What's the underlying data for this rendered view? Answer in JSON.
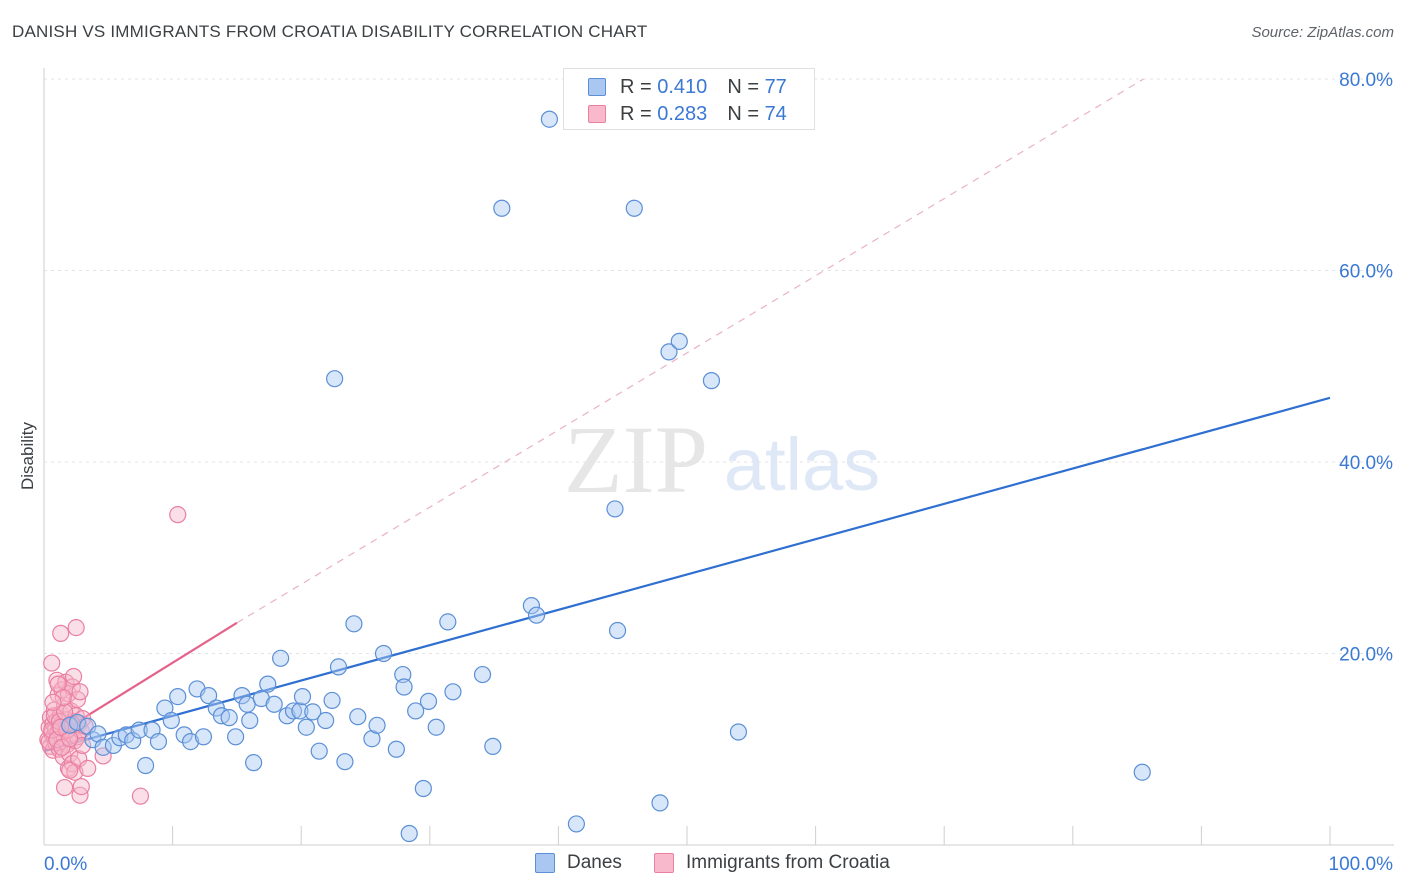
{
  "header": {
    "title": "DANISH VS IMMIGRANTS FROM CROATIA DISABILITY CORRELATION CHART",
    "source": "Source: ZipAtlas.com"
  },
  "watermark": {
    "zip": "ZIP",
    "atlas": "atlas"
  },
  "legend": {
    "items": [
      {
        "r_label": "R =",
        "r_value": "0.410",
        "n_label": "N =",
        "n_value": "77"
      },
      {
        "r_label": "R =",
        "r_value": "0.283",
        "n_label": "N =",
        "n_value": "74"
      }
    ]
  },
  "bottom_legend": {
    "danes": "Danes",
    "croatia": "Immigrants from Croatia"
  },
  "colors": {
    "danes_fill": "#a9c7f1",
    "danes_stroke": "#5b8fd6",
    "danes_line": "#2f6fd1",
    "croatia_fill": "#f7b9cb",
    "croatia_stroke": "#ea7fa0",
    "croatia_line": "#e5638b",
    "axis_text": "#3b78d4",
    "grid": "#e3e3e3"
  },
  "chart_data": {
    "type": "scatter",
    "title": "DANISH VS IMMIGRANTS FROM CROATIA DISABILITY CORRELATION CHART",
    "xlabel": "",
    "ylabel": "Disability",
    "xlim": [
      0,
      100
    ],
    "ylim": [
      0,
      80
    ],
    "x_tick_labels": [
      "0.0%",
      "100.0%"
    ],
    "y_ticks": [
      20,
      40,
      60,
      80
    ],
    "y_tick_labels": [
      "20.0%",
      "40.0%",
      "60.0%",
      "80.0%"
    ],
    "series": [
      {
        "name": "Danes",
        "R": 0.41,
        "N": 77,
        "trend": {
          "x": [
            0,
            100
          ],
          "y": [
            9.8,
            46.7
          ],
          "style": "solid"
        },
        "points": [
          [
            2.0,
            12.5
          ],
          [
            2.6,
            12.8
          ],
          [
            3.4,
            12.4
          ],
          [
            3.8,
            11.0
          ],
          [
            4.2,
            11.6
          ],
          [
            4.6,
            10.2
          ],
          [
            5.4,
            10.4
          ],
          [
            5.9,
            11.2
          ],
          [
            6.4,
            11.5
          ],
          [
            6.9,
            10.9
          ],
          [
            7.4,
            12.0
          ],
          [
            7.9,
            8.3
          ],
          [
            8.4,
            12.0
          ],
          [
            8.9,
            10.8
          ],
          [
            9.4,
            14.3
          ],
          [
            9.9,
            13.0
          ],
          [
            10.4,
            15.5
          ],
          [
            10.9,
            11.5
          ],
          [
            11.4,
            10.8
          ],
          [
            11.9,
            16.3
          ],
          [
            12.4,
            11.3
          ],
          [
            12.8,
            15.6
          ],
          [
            13.4,
            14.3
          ],
          [
            13.8,
            13.5
          ],
          [
            14.4,
            13.3
          ],
          [
            14.9,
            11.3
          ],
          [
            15.4,
            15.6
          ],
          [
            15.8,
            14.7
          ],
          [
            16.3,
            8.6
          ],
          [
            16.9,
            15.3
          ],
          [
            17.4,
            16.8
          ],
          [
            17.9,
            14.7
          ],
          [
            18.4,
            19.5
          ],
          [
            18.9,
            13.5
          ],
          [
            19.4,
            14.0
          ],
          [
            19.9,
            14.0
          ],
          [
            20.4,
            12.3
          ],
          [
            20.9,
            13.9
          ],
          [
            21.4,
            9.8
          ],
          [
            21.9,
            13.0
          ],
          [
            22.4,
            15.1
          ],
          [
            22.9,
            18.6
          ],
          [
            22.6,
            48.7
          ],
          [
            23.4,
            8.7
          ],
          [
            24.1,
            23.1
          ],
          [
            24.4,
            13.4
          ],
          [
            25.5,
            11.1
          ],
          [
            25.9,
            12.5
          ],
          [
            26.4,
            20.0
          ],
          [
            27.4,
            10.0
          ],
          [
            27.9,
            17.8
          ],
          [
            28.4,
            1.2
          ],
          [
            28.9,
            14.0
          ],
          [
            29.5,
            5.9
          ],
          [
            29.9,
            15.0
          ],
          [
            30.5,
            12.3
          ],
          [
            31.4,
            23.3
          ],
          [
            31.8,
            16.0
          ],
          [
            34.1,
            17.8
          ],
          [
            34.9,
            10.3
          ],
          [
            35.6,
            66.5
          ],
          [
            37.9,
            25.0
          ],
          [
            38.3,
            24.0
          ],
          [
            39.3,
            75.8
          ],
          [
            41.4,
            2.2
          ],
          [
            44.4,
            35.1
          ],
          [
            44.6,
            22.4
          ],
          [
            45.9,
            66.5
          ],
          [
            47.9,
            4.4
          ],
          [
            48.6,
            51.5
          ],
          [
            49.4,
            52.6
          ],
          [
            51.9,
            48.5
          ],
          [
            54.0,
            11.8
          ],
          [
            85.4,
            7.6
          ],
          [
            28.0,
            16.5
          ],
          [
            16.0,
            13.0
          ],
          [
            20.1,
            15.5
          ]
        ]
      },
      {
        "name": "Immigrants from Croatia",
        "R": 0.283,
        "N": 74,
        "trend": {
          "x": [
            0,
            15
          ],
          "y": [
            10.7,
            23.2
          ],
          "style": "solid"
        },
        "trend_extension": {
          "x": [
            15,
            85.5
          ],
          "y": [
            23.2,
            80
          ],
          "style": "dashed"
        },
        "points": [
          [
            0.3,
            11.0
          ],
          [
            0.4,
            12.3
          ],
          [
            0.5,
            10.3
          ],
          [
            0.5,
            13.3
          ],
          [
            0.6,
            11.7
          ],
          [
            0.6,
            19.0
          ],
          [
            0.7,
            12.7
          ],
          [
            0.7,
            9.9
          ],
          [
            0.8,
            11.4
          ],
          [
            0.8,
            14.1
          ],
          [
            0.9,
            12.1
          ],
          [
            0.9,
            10.7
          ],
          [
            1.0,
            13.0
          ],
          [
            1.0,
            17.2
          ],
          [
            1.1,
            11.8
          ],
          [
            1.1,
            15.7
          ],
          [
            1.2,
            12.4
          ],
          [
            1.2,
            10.0
          ],
          [
            1.3,
            13.7
          ],
          [
            1.3,
            22.1
          ],
          [
            1.4,
            11.2
          ],
          [
            1.4,
            16.2
          ],
          [
            1.5,
            12.8
          ],
          [
            1.5,
            9.2
          ],
          [
            1.6,
            6.0
          ],
          [
            1.6,
            14.6
          ],
          [
            1.7,
            11.9
          ],
          [
            1.7,
            17.0
          ],
          [
            1.8,
            13.1
          ],
          [
            1.8,
            10.5
          ],
          [
            1.9,
            8.0
          ],
          [
            1.9,
            15.8
          ],
          [
            2.0,
            12.2
          ],
          [
            2.0,
            9.5
          ],
          [
            2.1,
            14.0
          ],
          [
            2.1,
            11.6
          ],
          [
            2.2,
            16.5
          ],
          [
            2.2,
            8.5
          ],
          [
            2.3,
            12.9
          ],
          [
            2.3,
            17.6
          ],
          [
            2.4,
            10.9
          ],
          [
            2.4,
            7.6
          ],
          [
            2.5,
            22.7
          ],
          [
            2.5,
            13.5
          ],
          [
            2.6,
            11.3
          ],
          [
            2.6,
            15.2
          ],
          [
            2.7,
            12.6
          ],
          [
            2.7,
            9.0
          ],
          [
            2.8,
            5.2
          ],
          [
            2.8,
            16.0
          ],
          [
            2.9,
            11.9
          ],
          [
            3.0,
            13.2
          ],
          [
            3.0,
            10.4
          ],
          [
            3.2,
            12.4
          ],
          [
            3.4,
            8.0
          ],
          [
            4.6,
            9.3
          ],
          [
            7.5,
            5.1
          ],
          [
            10.4,
            34.5
          ],
          [
            0.4,
            10.8
          ],
          [
            0.6,
            12.0
          ],
          [
            0.8,
            13.5
          ],
          [
            1.0,
            11.0
          ],
          [
            1.2,
            12.9
          ],
          [
            1.4,
            10.2
          ],
          [
            1.6,
            13.9
          ],
          [
            1.8,
            12.0
          ],
          [
            2.0,
            11.1
          ],
          [
            2.2,
            12.6
          ],
          [
            1.1,
            16.8
          ],
          [
            1.5,
            15.4
          ],
          [
            2.9,
            6.1
          ],
          [
            2.0,
            7.8
          ],
          [
            0.7,
            14.9
          ],
          [
            1.3,
            12.3
          ]
        ]
      }
    ]
  }
}
